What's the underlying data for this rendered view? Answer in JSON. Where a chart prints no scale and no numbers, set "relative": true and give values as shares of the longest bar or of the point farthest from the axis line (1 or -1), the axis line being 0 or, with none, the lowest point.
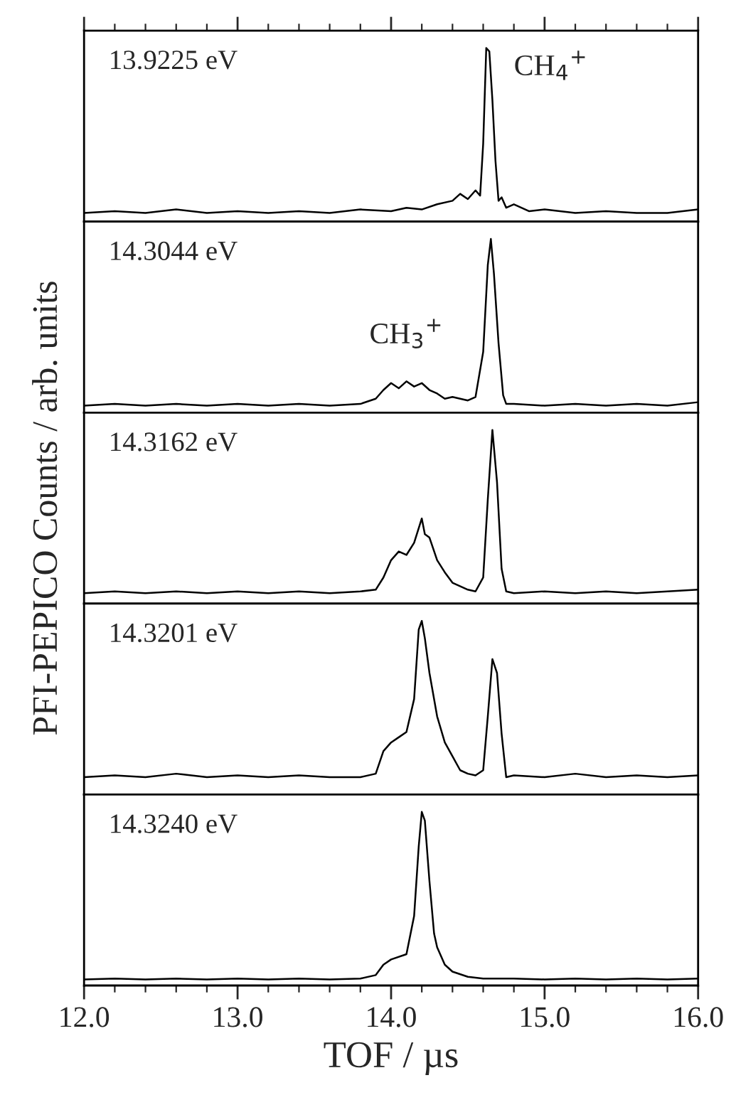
{
  "chart_data": [
    {
      "type": "line",
      "relative": true,
      "xlim": [
        12.0,
        16.0
      ],
      "xticks": [
        12,
        13,
        14,
        15,
        16
      ],
      "tick_labels": false,
      "annotations": [
        "13.9225 eV",
        {
          "text": "CH$_{4}$$^{+}$",
          "x": 14.62,
          "y": 1.0
        }
      ],
      "series": [
        {
          "color": "#000000",
          "x": [
            12.0,
            12.2,
            12.4,
            12.6,
            12.8,
            13.0,
            13.2,
            13.4,
            13.6,
            13.8,
            14.0,
            14.1,
            14.2,
            14.3,
            14.4,
            14.45,
            14.5,
            14.55,
            14.58,
            14.6,
            14.62,
            14.64,
            14.66,
            14.68,
            14.7,
            14.72,
            14.75,
            14.8,
            14.9,
            15.0,
            15.2,
            15.4,
            15.6,
            15.8,
            16.0
          ],
          "values": [
            0.05,
            0.06,
            0.05,
            0.07,
            0.05,
            0.06,
            0.05,
            0.06,
            0.05,
            0.07,
            0.06,
            0.08,
            0.07,
            0.1,
            0.12,
            0.16,
            0.13,
            0.18,
            0.15,
            0.45,
            1.0,
            0.98,
            0.7,
            0.35,
            0.12,
            0.14,
            0.08,
            0.1,
            0.06,
            0.07,
            0.05,
            0.06,
            0.05,
            0.05,
            0.07
          ]
        }
      ]
    },
    {
      "type": "line",
      "relative": true,
      "xlim": [
        12.0,
        16.0
      ],
      "xticks": [
        12,
        13,
        14,
        15,
        16
      ],
      "tick_labels": false,
      "annotations": [
        "14.3044 eV",
        {
          "text": "CH$_{3}$$^{+}$",
          "x": 14.1,
          "y": 0.18
        }
      ],
      "series": [
        {
          "color": "#000000",
          "x": [
            12.0,
            12.2,
            12.4,
            12.6,
            12.8,
            13.0,
            13.2,
            13.4,
            13.6,
            13.8,
            13.9,
            13.95,
            14.0,
            14.05,
            14.1,
            14.15,
            14.2,
            14.25,
            14.3,
            14.35,
            14.4,
            14.5,
            14.55,
            14.6,
            14.63,
            14.65,
            14.67,
            14.7,
            14.73,
            14.75,
            14.8,
            15.0,
            15.2,
            15.4,
            15.6,
            15.8,
            16.0
          ],
          "values": [
            0.04,
            0.05,
            0.04,
            0.05,
            0.04,
            0.05,
            0.04,
            0.05,
            0.04,
            0.05,
            0.08,
            0.13,
            0.17,
            0.14,
            0.18,
            0.15,
            0.17,
            0.13,
            0.11,
            0.08,
            0.09,
            0.07,
            0.09,
            0.35,
            0.85,
            1.0,
            0.8,
            0.4,
            0.1,
            0.05,
            0.05,
            0.04,
            0.05,
            0.04,
            0.05,
            0.04,
            0.06
          ]
        }
      ]
    },
    {
      "type": "line",
      "relative": true,
      "xlim": [
        12.0,
        16.0
      ],
      "xticks": [
        12,
        13,
        14,
        15,
        16
      ],
      "tick_labels": false,
      "ylabel": "PFI-PEPICO Counts / arb. units",
      "annotations": [
        "14.3162 eV"
      ],
      "series": [
        {
          "color": "#000000",
          "x": [
            12.0,
            12.2,
            12.4,
            12.6,
            12.8,
            13.0,
            13.2,
            13.4,
            13.6,
            13.8,
            13.9,
            13.95,
            14.0,
            14.05,
            14.1,
            14.15,
            14.2,
            14.22,
            14.25,
            14.3,
            14.35,
            14.4,
            14.5,
            14.55,
            14.6,
            14.63,
            14.66,
            14.69,
            14.72,
            14.75,
            14.8,
            15.0,
            15.2,
            15.4,
            15.6,
            15.8,
            16.0
          ],
          "values": [
            0.06,
            0.07,
            0.06,
            0.07,
            0.06,
            0.07,
            0.06,
            0.07,
            0.06,
            0.07,
            0.08,
            0.15,
            0.25,
            0.3,
            0.28,
            0.35,
            0.49,
            0.4,
            0.38,
            0.25,
            0.18,
            0.12,
            0.08,
            0.07,
            0.15,
            0.6,
            1.0,
            0.7,
            0.2,
            0.07,
            0.06,
            0.07,
            0.06,
            0.07,
            0.06,
            0.07,
            0.08
          ]
        }
      ]
    },
    {
      "type": "line",
      "relative": true,
      "xlim": [
        12.0,
        16.0
      ],
      "xticks": [
        12,
        13,
        14,
        15,
        16
      ],
      "tick_labels": false,
      "annotations": [
        "14.3201 eV"
      ],
      "series": [
        {
          "color": "#000000",
          "x": [
            12.0,
            12.2,
            12.4,
            12.6,
            12.8,
            13.0,
            13.2,
            13.4,
            13.6,
            13.8,
            13.9,
            13.95,
            14.0,
            14.05,
            14.1,
            14.15,
            14.18,
            14.2,
            14.22,
            14.25,
            14.3,
            14.35,
            14.4,
            14.45,
            14.5,
            14.55,
            14.6,
            14.63,
            14.66,
            14.69,
            14.72,
            14.75,
            14.8,
            15.0,
            15.2,
            15.4,
            15.6,
            15.8,
            16.0
          ],
          "values": [
            0.1,
            0.11,
            0.1,
            0.12,
            0.1,
            0.11,
            0.1,
            0.11,
            0.1,
            0.1,
            0.12,
            0.25,
            0.3,
            0.33,
            0.36,
            0.55,
            0.95,
            1.0,
            0.9,
            0.7,
            0.45,
            0.3,
            0.22,
            0.14,
            0.12,
            0.11,
            0.14,
            0.45,
            0.78,
            0.7,
            0.35,
            0.1,
            0.11,
            0.1,
            0.12,
            0.1,
            0.11,
            0.1,
            0.11
          ]
        }
      ]
    },
    {
      "type": "line",
      "relative": true,
      "xlim": [
        12.0,
        16.0
      ],
      "xticks": [
        {
          "value": 12,
          "label": "12.0"
        },
        {
          "value": 13,
          "label": "13.0"
        },
        {
          "value": 14,
          "label": "14.0"
        },
        {
          "value": 15,
          "label": "15.0"
        },
        {
          "value": 16,
          "label": "16.0"
        }
      ],
      "tick_labels": "x",
      "xlabel": "TOF / µs",
      "annotations": [
        "14.3240 eV"
      ],
      "series": [
        {
          "color": "#000000",
          "x": [
            12.0,
            12.2,
            12.4,
            12.6,
            12.8,
            13.0,
            13.2,
            13.4,
            13.6,
            13.8,
            13.9,
            13.95,
            14.0,
            14.1,
            14.15,
            14.18,
            14.2,
            14.22,
            14.25,
            14.28,
            14.3,
            14.35,
            14.4,
            14.5,
            14.6,
            14.8,
            15.0,
            15.2,
            15.4,
            15.6,
            15.8,
            16.0
          ],
          "values": [
            0.035,
            0.04,
            0.035,
            0.04,
            0.035,
            0.04,
            0.035,
            0.04,
            0.035,
            0.04,
            0.06,
            0.12,
            0.15,
            0.18,
            0.4,
            0.8,
            1.0,
            0.95,
            0.6,
            0.3,
            0.22,
            0.12,
            0.08,
            0.05,
            0.04,
            0.04,
            0.035,
            0.04,
            0.035,
            0.04,
            0.035,
            0.04
          ]
        }
      ]
    }
  ]
}
